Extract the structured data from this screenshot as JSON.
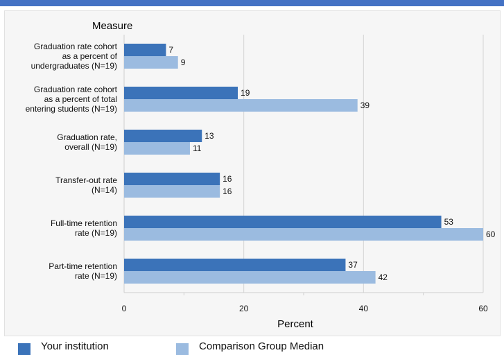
{
  "chart_data": {
    "type": "bar",
    "orientation": "horizontal",
    "category_axis_title": "Measure",
    "xlabel": "Percent",
    "xlim": [
      0,
      60
    ],
    "x_ticks": [
      0,
      20,
      40,
      60
    ],
    "grid": true,
    "legend_position": "bottom",
    "categories": [
      [
        "Graduation rate cohort",
        "as a percent of",
        "undergraduates (N=19)"
      ],
      [
        "Graduation rate cohort",
        "as a percent of total",
        "entering students (N=19)"
      ],
      [
        "Graduation rate,",
        "overall (N=19)"
      ],
      [
        "Transfer-out rate",
        "(N=14)"
      ],
      [
        "Full-time retention",
        "rate (N=19)"
      ],
      [
        "Part-time retention",
        "rate (N=19)"
      ]
    ],
    "series": [
      {
        "name": "Your institution",
        "color": "#3b73b9",
        "values": [
          7,
          19,
          13,
          16,
          53,
          37
        ]
      },
      {
        "name": "Comparison Group Median",
        "color": "#9bbbe0",
        "values": [
          9,
          39,
          11,
          16,
          60,
          42
        ]
      }
    ]
  }
}
